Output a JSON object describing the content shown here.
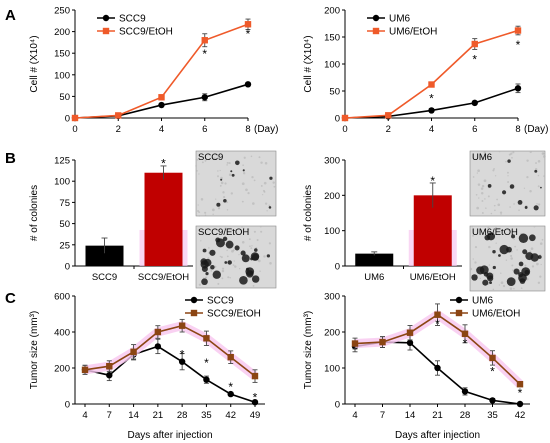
{
  "panels": {
    "A": "A",
    "B": "B",
    "C": "C"
  },
  "chart_data": [
    {
      "id": "A-left",
      "type": "line",
      "x": [
        0,
        2,
        4,
        6,
        8
      ],
      "xticks": [
        "0",
        "2",
        "4",
        "6",
        "8"
      ],
      "xlabel": "(Day)",
      "ylabel": "Cell # (X10⁴)",
      "ylim": [
        0,
        250
      ],
      "yticks": [
        "0",
        "50",
        "100",
        "150",
        "200",
        "250"
      ],
      "legend_position": "top-left",
      "series": [
        {
          "name": "SCC9",
          "color": "#000000",
          "marker": "circle",
          "values": [
            0,
            5,
            30,
            48,
            78
          ],
          "errors": [
            0,
            2,
            4,
            8,
            4
          ]
        },
        {
          "name": "SCC9/EtOH",
          "color": "#ef5a2a",
          "marker": "square",
          "values": [
            0,
            6,
            48,
            180,
            217
          ],
          "errors": [
            0,
            2,
            4,
            15,
            12
          ]
        }
      ],
      "annotations": [
        {
          "x": 6,
          "y": 148,
          "text": "*"
        },
        {
          "x": 8,
          "y": 195,
          "text": "*"
        }
      ]
    },
    {
      "id": "A-right",
      "type": "line",
      "x": [
        0,
        2,
        4,
        6,
        8
      ],
      "xticks": [
        "0",
        "2",
        "4",
        "6",
        "8"
      ],
      "xlabel": "(Day)",
      "ylabel": "Cell # (X10⁴)",
      "ylim": [
        0,
        200
      ],
      "yticks": [
        "0",
        "50",
        "100",
        "150",
        "200"
      ],
      "legend_position": "top-left",
      "series": [
        {
          "name": "UM6",
          "color": "#000000",
          "marker": "circle",
          "values": [
            0,
            3,
            14,
            28,
            55
          ],
          "errors": [
            0,
            1,
            2,
            3,
            8
          ]
        },
        {
          "name": "UM6/EtOH",
          "color": "#ef5a2a",
          "marker": "square",
          "values": [
            0,
            5,
            62,
            137,
            162
          ],
          "errors": [
            0,
            2,
            4,
            10,
            8
          ]
        }
      ],
      "annotations": [
        {
          "x": 4,
          "y": 36,
          "text": "*"
        },
        {
          "x": 6,
          "y": 108,
          "text": "*"
        },
        {
          "x": 8,
          "y": 135,
          "text": "*"
        }
      ]
    },
    {
      "id": "B-left",
      "type": "bar",
      "categories": [
        "SCC9",
        "SCC9/EtOH"
      ],
      "ylabel": "# of colonies",
      "ylim": [
        0,
        125
      ],
      "yticks": [
        "0",
        "25",
        "50",
        "75",
        "100",
        "125"
      ],
      "values": [
        24,
        110
      ],
      "errors": [
        9,
        8
      ],
      "colors": [
        "#000000",
        "#c00000"
      ],
      "annotations": [
        {
          "category": "SCC9/EtOH",
          "y": 121,
          "text": "*"
        }
      ]
    },
    {
      "id": "B-right",
      "type": "bar",
      "categories": [
        "UM6",
        "UM6/EtOH"
      ],
      "ylabel": "# of colonies",
      "ylim": [
        0,
        300
      ],
      "yticks": [
        "0",
        "100",
        "200",
        "300"
      ],
      "values": [
        35,
        200
      ],
      "errors": [
        5,
        35
      ],
      "colors": [
        "#000000",
        "#c00000"
      ],
      "annotations": [
        {
          "category": "UM6/EtOH",
          "y": 240,
          "text": "*"
        }
      ]
    },
    {
      "id": "C-left",
      "type": "line",
      "x": [
        4,
        7,
        14,
        21,
        28,
        35,
        42,
        49
      ],
      "xticks": [
        "4",
        "7",
        "14",
        "21",
        "28",
        "35",
        "42",
        "49"
      ],
      "xlabel": "Days after injection",
      "ylabel": "Tumor size (mm³)",
      "ylim": [
        0,
        600
      ],
      "yticks": [
        "0",
        "200",
        "400",
        "600"
      ],
      "legend_position": "top-right",
      "series": [
        {
          "name": "SCC9",
          "color": "#000000",
          "marker": "circle",
          "values": [
            190,
            160,
            275,
            320,
            235,
            135,
            55,
            10
          ],
          "errors": [
            25,
            30,
            30,
            40,
            45,
            20,
            10,
            5
          ]
        },
        {
          "name": "SCC9/EtOH",
          "color": "#8b4513",
          "marker": "square",
          "values": [
            190,
            210,
            290,
            400,
            435,
            365,
            260,
            155
          ],
          "errors": [
            25,
            30,
            40,
            35,
            35,
            40,
            35,
            35
          ]
        }
      ],
      "annotations": [
        {
          "x": 28,
          "y": 275,
          "text": "*"
        },
        {
          "x": 35,
          "y": 228,
          "text": "*"
        },
        {
          "x": 42,
          "y": 95,
          "text": "*"
        },
        {
          "x": 49,
          "y": 35,
          "text": "*"
        }
      ]
    },
    {
      "id": "C-right",
      "type": "line",
      "x": [
        4,
        7,
        14,
        21,
        28,
        35,
        42
      ],
      "xticks": [
        "4",
        "7",
        "14",
        "21",
        "28",
        "35",
        "42"
      ],
      "xlabel": "Days after injection",
      "ylabel": "Tumor size (mm³)",
      "ylim": [
        0,
        300
      ],
      "yticks": [
        "0",
        "100",
        "200",
        "300"
      ],
      "legend_position": "top-right",
      "series": [
        {
          "name": "UM6",
          "color": "#000000",
          "marker": "circle",
          "values": [
            160,
            172,
            170,
            100,
            35,
            10,
            0
          ],
          "errors": [
            15,
            15,
            20,
            20,
            10,
            5,
            2
          ]
        },
        {
          "name": "UM6/EtOH",
          "color": "#8b4513",
          "marker": "square",
          "values": [
            168,
            172,
            198,
            248,
            195,
            128,
            55
          ],
          "errors": [
            15,
            15,
            20,
            30,
            25,
            20,
            5
          ]
        }
      ],
      "annotations": [
        {
          "x": 21,
          "y": 222,
          "text": "*"
        },
        {
          "x": 28,
          "y": 168,
          "text": "*"
        },
        {
          "x": 35,
          "y": 90,
          "text": "*"
        },
        {
          "x": 42,
          "y": 30,
          "text": "*"
        }
      ]
    }
  ],
  "micrographs": [
    {
      "label": "SCC9",
      "colonies": "few"
    },
    {
      "label": "SCC9/EtOH",
      "colonies": "many"
    },
    {
      "label": "UM6",
      "colonies": "few"
    },
    {
      "label": "UM6/EtOH",
      "colonies": "many"
    }
  ]
}
